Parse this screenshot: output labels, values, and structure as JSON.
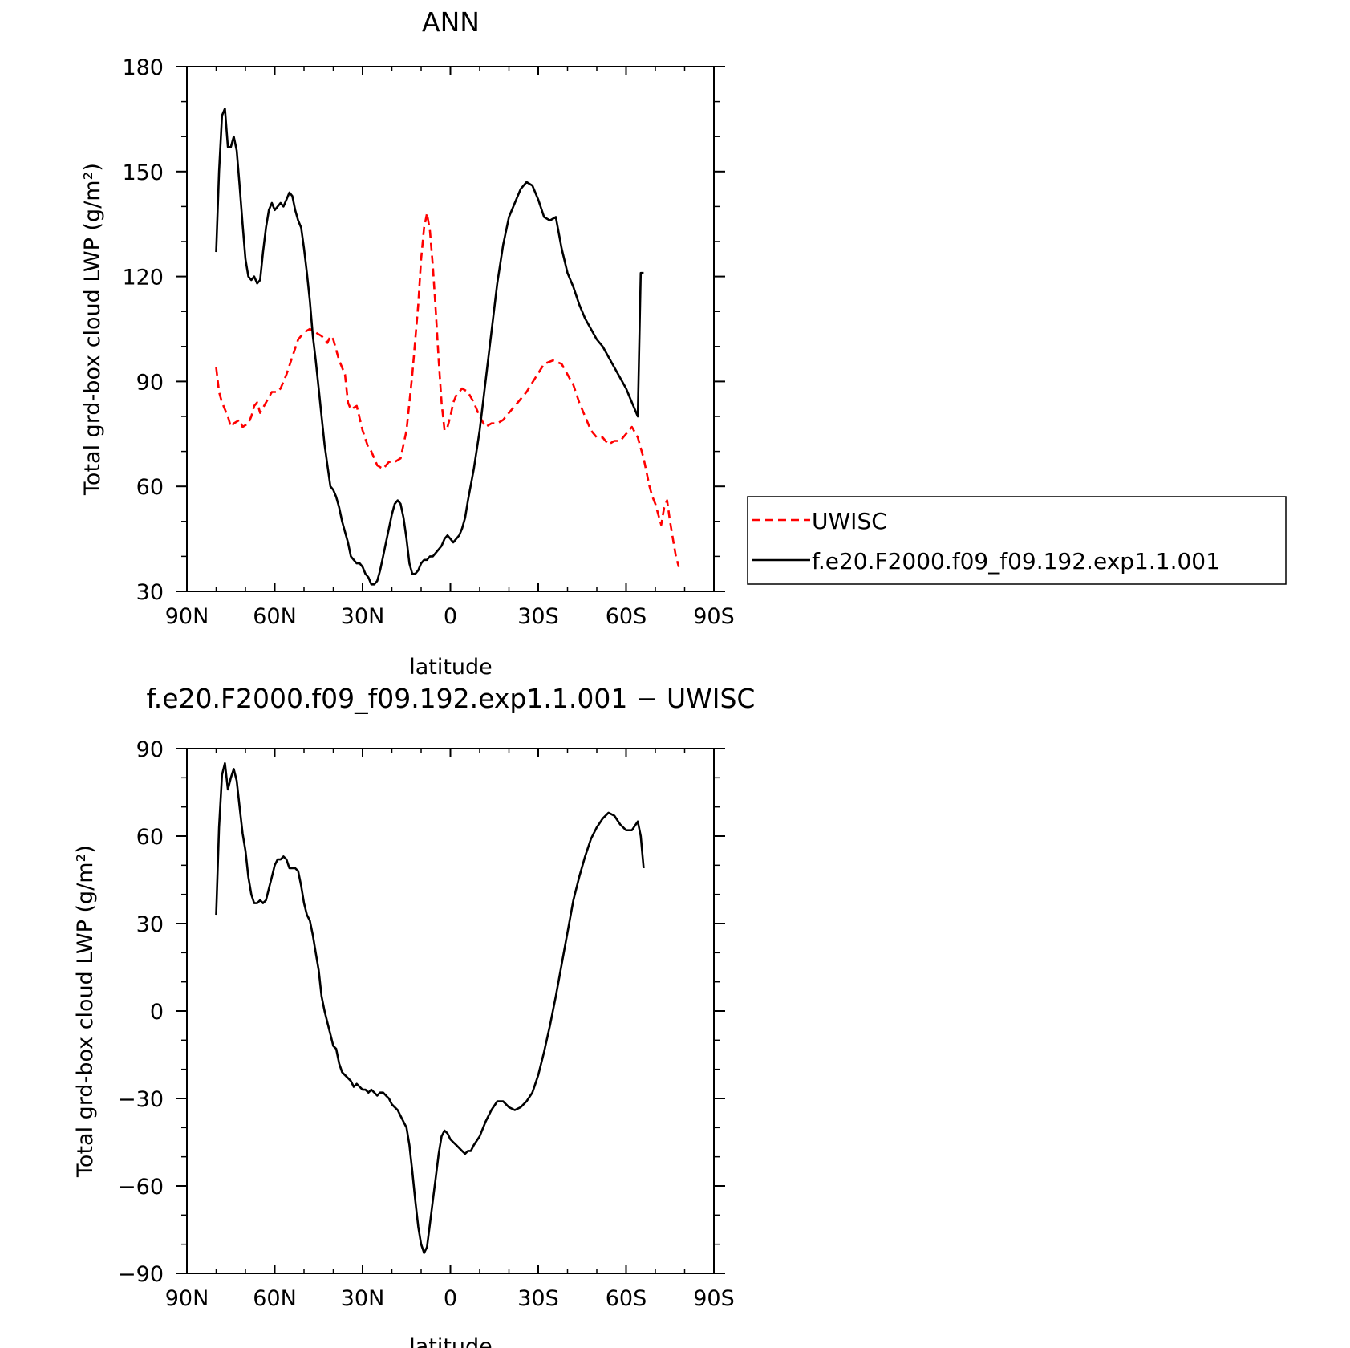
{
  "chart_data": [
    {
      "type": "line",
      "title": "ANN",
      "xlabel": "latitude",
      "ylabel": "Total grd-box cloud LWP (g/m²)",
      "ylim": [
        30,
        180
      ],
      "xlim": [
        90,
        -90
      ],
      "x_tick_values": [
        90,
        60,
        30,
        0,
        -30,
        -60,
        -90
      ],
      "x_tick_labels": [
        "90N",
        "60N",
        "30N",
        "0",
        "30S",
        "60S",
        "90S"
      ],
      "y_ticks": [
        30,
        60,
        90,
        120,
        150,
        180
      ],
      "legend_position": "right",
      "series": [
        {
          "name": "UWISC",
          "color": "#ff0000",
          "dash": "dashed",
          "x": [
            80,
            79,
            78,
            76,
            75,
            74,
            72,
            71,
            69,
            68,
            67,
            66,
            65,
            63,
            61,
            59,
            58,
            56,
            54,
            52,
            50,
            48,
            46,
            44,
            42,
            41,
            40,
            38,
            36,
            35,
            34,
            32,
            30,
            28,
            27,
            25,
            23,
            21,
            19,
            17,
            15,
            13,
            11,
            10,
            9,
            8,
            7,
            6,
            5,
            4,
            3,
            2,
            1,
            0,
            -1,
            -2,
            -4,
            -6,
            -8,
            -10,
            -12,
            -14,
            -16,
            -18,
            -20,
            -23,
            -26,
            -29,
            -32,
            -35,
            -38,
            -40,
            -42,
            -44,
            -46,
            -48,
            -50,
            -52,
            -54,
            -56,
            -58,
            -60,
            -62,
            -64,
            -66,
            -68,
            -69,
            -70,
            -71,
            -72,
            -73,
            -74,
            -75,
            -76,
            -77,
            -78
          ],
          "y": [
            94,
            87,
            84,
            80,
            77,
            78,
            79,
            77,
            78,
            80,
            83,
            84,
            81,
            84,
            87,
            87,
            88,
            92,
            97,
            102,
            104,
            105,
            104,
            103,
            101,
            103,
            102,
            96,
            92,
            84,
            82,
            83,
            76,
            71,
            70,
            66,
            65,
            67,
            67,
            68,
            76,
            92,
            112,
            125,
            134,
            138,
            133,
            123,
            110,
            96,
            84,
            76,
            77,
            80,
            84,
            86,
            88,
            87,
            84,
            80,
            77,
            78,
            78,
            79,
            81,
            84,
            87,
            91,
            95,
            96,
            95,
            92,
            89,
            84,
            80,
            76,
            74,
            74,
            72,
            73,
            73,
            75,
            77,
            74,
            68,
            60,
            57,
            55,
            52,
            49,
            54,
            56,
            50,
            45,
            40,
            37
          ],
          "note": ""
        },
        {
          "name": "f.e20.F2000.f09_f09.192.exp1.1.001",
          "color": "#000000",
          "dash": "solid",
          "x": [
            80,
            79,
            78,
            77,
            76,
            75,
            74,
            73,
            72,
            71,
            70,
            69,
            68,
            67,
            66,
            65,
            64,
            63,
            62,
            61,
            60,
            59,
            58,
            57,
            56,
            55,
            54,
            53,
            52,
            51,
            50,
            49,
            48,
            47,
            46,
            45,
            44,
            43,
            42,
            41,
            40,
            39,
            38,
            37,
            36,
            35,
            34,
            33,
            32,
            31,
            30,
            29,
            28,
            27,
            26,
            25,
            24,
            23,
            22,
            21,
            20,
            19,
            18,
            17,
            16,
            15,
            14,
            13,
            12,
            11,
            10,
            9,
            8,
            7,
            6,
            5,
            4,
            3,
            2,
            1,
            0,
            -1,
            -2,
            -3,
            -4,
            -5,
            -6,
            -8,
            -10,
            -12,
            -14,
            -16,
            -18,
            -20,
            -22,
            -24,
            -26,
            -28,
            -30,
            -32,
            -34,
            -36,
            -38,
            -40,
            -42,
            -44,
            -46,
            -48,
            -50,
            -52,
            -54,
            -56,
            -58,
            -60,
            -62,
            -64,
            -65,
            -66
          ],
          "y": [
            127,
            150,
            166,
            168,
            157,
            157,
            160,
            156,
            146,
            135,
            125,
            120,
            119,
            120,
            118,
            119,
            127,
            134,
            139,
            141,
            139,
            140,
            141,
            140,
            142,
            144,
            143,
            139,
            136,
            134,
            128,
            121,
            113,
            103,
            96,
            88,
            80,
            72,
            66,
            60,
            59,
            57,
            54,
            50,
            47,
            44,
            40,
            39,
            38,
            38,
            37,
            35,
            34,
            32,
            32,
            33,
            36,
            40,
            44,
            48,
            52,
            55,
            56,
            55,
            51,
            45,
            38,
            35,
            35,
            36,
            38,
            39,
            39,
            40,
            40,
            41,
            42,
            43,
            45,
            46,
            45,
            44,
            45,
            46,
            48,
            51,
            56,
            65,
            76,
            90,
            104,
            118,
            129,
            137,
            141,
            145,
            147,
            146,
            142,
            137,
            136,
            137,
            128,
            121,
            117,
            112,
            108,
            105,
            102,
            100,
            97,
            94,
            91,
            88,
            84,
            80,
            121,
            121
          ]
        }
      ]
    },
    {
      "type": "line",
      "title": "f.e20.F2000.f09_f09.192.exp1.1.001 − UWISC",
      "xlabel": "latitude",
      "ylabel": "Total grd-box cloud LWP (g/m²)",
      "ylim": [
        -90,
        90
      ],
      "xlim": [
        90,
        -90
      ],
      "x_tick_values": [
        90,
        60,
        30,
        0,
        -30,
        -60,
        -90
      ],
      "x_tick_labels": [
        "90N",
        "60N",
        "30N",
        "0",
        "30S",
        "60S",
        "90S"
      ],
      "y_ticks": [
        -90,
        -60,
        -30,
        0,
        30,
        60,
        90
      ],
      "series": [
        {
          "color": "#000000",
          "dash": "solid",
          "x": [
            80,
            79,
            78,
            77,
            76,
            75,
            74,
            73,
            72,
            71,
            70,
            69,
            68,
            67,
            66,
            65,
            64,
            63,
            62,
            61,
            60,
            59,
            58,
            57,
            56,
            55,
            54,
            53,
            52,
            51,
            50,
            49,
            48,
            47,
            46,
            45,
            44,
            43,
            42,
            41,
            40,
            39,
            38,
            37,
            36,
            35,
            34,
            33,
            32,
            31,
            30,
            29,
            28,
            27,
            26,
            25,
            24,
            23,
            22,
            21,
            20,
            19,
            18,
            17,
            16,
            15,
            14,
            13,
            12,
            11,
            10,
            9,
            8,
            7,
            6,
            5,
            4,
            3,
            2,
            1,
            0,
            -1,
            -2,
            -3,
            -4,
            -5,
            -6,
            -7,
            -8,
            -10,
            -12,
            -14,
            -16,
            -18,
            -20,
            -22,
            -24,
            -26,
            -28,
            -30,
            -32,
            -34,
            -36,
            -38,
            -40,
            -42,
            -44,
            -46,
            -48,
            -50,
            -52,
            -54,
            -56,
            -58,
            -60,
            -62,
            -64,
            -65,
            -66
          ],
          "y": [
            33,
            63,
            81,
            85,
            76,
            80,
            83,
            79,
            70,
            61,
            55,
            46,
            40,
            37,
            37,
            38,
            37,
            38,
            42,
            46,
            50,
            52,
            52,
            53,
            52,
            49,
            49,
            49,
            48,
            43,
            37,
            33,
            31,
            26,
            20,
            14,
            5,
            0,
            -4,
            -8,
            -12,
            -13,
            -18,
            -21,
            -22,
            -23,
            -24,
            -26,
            -25,
            -26,
            -27,
            -27,
            -28,
            -27,
            -28,
            -29,
            -28,
            -28,
            -29,
            -30,
            -32,
            -33,
            -34,
            -36,
            -38,
            -40,
            -46,
            -55,
            -65,
            -74,
            -80,
            -83,
            -81,
            -73,
            -65,
            -57,
            -49,
            -43,
            -41,
            -42,
            -44,
            -45,
            -46,
            -47,
            -48,
            -49,
            -48,
            -48,
            -46,
            -43,
            -38,
            -34,
            -31,
            -31,
            -33,
            -34,
            -33,
            -31,
            -28,
            -22,
            -14,
            -5,
            5,
            16,
            27,
            38,
            46,
            53,
            59,
            63,
            66,
            68,
            67,
            64,
            62,
            62,
            65,
            60,
            49
          ]
        }
      ]
    }
  ]
}
